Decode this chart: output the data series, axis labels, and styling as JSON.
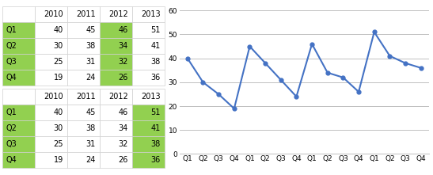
{
  "table_data": {
    "headers": [
      "",
      "2010",
      "2011",
      "2012",
      "2013"
    ],
    "rows": [
      [
        "Q1",
        40,
        45,
        46,
        51
      ],
      [
        "Q2",
        30,
        38,
        34,
        41
      ],
      [
        "Q3",
        25,
        31,
        32,
        38
      ],
      [
        "Q4",
        19,
        24,
        26,
        36
      ]
    ]
  },
  "line_values": [
    40,
    30,
    25,
    19,
    45,
    38,
    31,
    24,
    46,
    34,
    32,
    26,
    51,
    41,
    38,
    36
  ],
  "x_labels": [
    "Q1",
    "Q2",
    "Q3",
    "Q4",
    "Q1",
    "Q2",
    "Q3",
    "Q4",
    "Q1",
    "Q2",
    "Q3",
    "Q4",
    "Q1",
    "Q2",
    "Q3",
    "Q4"
  ],
  "ylim": [
    0,
    60
  ],
  "yticks": [
    0,
    10,
    20,
    30,
    40,
    50,
    60
  ],
  "line_color": "#4472C4",
  "marker_color": "#4472C4",
  "table_row_label_bg": "#92D050",
  "table1_highlight_cols": [
    3
  ],
  "table2_highlight_cols": [
    4
  ],
  "grid_color": "#C0C0C0",
  "chart_bg": "#ffffff",
  "fig_bg": "#ffffff",
  "cell_border_color": "#d0d0d0",
  "fig_width": 5.47,
  "fig_height": 2.21,
  "dpi": 100
}
